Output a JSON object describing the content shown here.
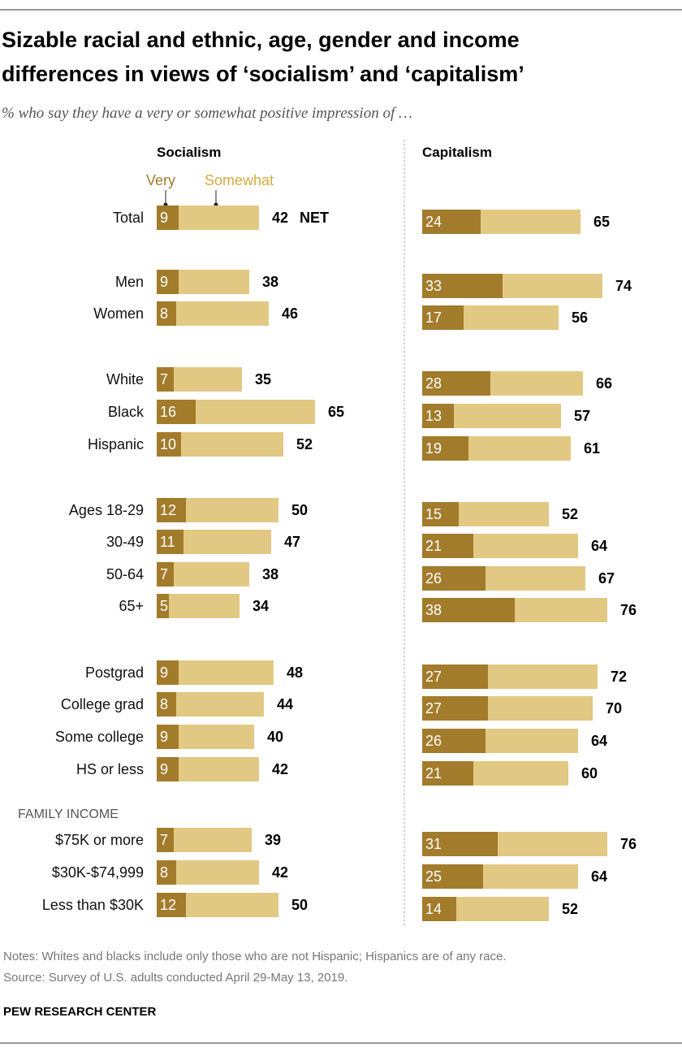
{
  "chart_data": {
    "type": "bar",
    "subtype": "stacked-horizontal",
    "title": "Sizable racial and ethnic, age, gender and income differences in views of ‘socialism’ and ‘capitalism’",
    "title_lines": [
      "Sizable racial and ethnic, age, gender and income",
      "differences in views of ‘socialism’ and ‘capitalism’"
    ],
    "subtitle": "% who say they have a very or somewhat positive impression of …",
    "legend": {
      "very": "Very",
      "somewhat": "Somewhat"
    },
    "net_label": "NET",
    "section_label": "FAMILY INCOME",
    "categories": [
      "Total",
      "Men",
      "Women",
      "White",
      "Black",
      "Hispanic",
      "Ages 18-29",
      "30-49",
      "50-64",
      "65+",
      "Postgrad",
      "College grad",
      "Some college",
      "HS or less",
      "$75K or more",
      "$30K-$74,999",
      "Less than $30K"
    ],
    "panels": [
      {
        "name": "Socialism",
        "very": [
          9,
          9,
          8,
          7,
          16,
          10,
          12,
          11,
          7,
          5,
          9,
          8,
          9,
          9,
          7,
          8,
          12
        ],
        "net": [
          42,
          38,
          46,
          35,
          65,
          52,
          50,
          47,
          38,
          34,
          48,
          44,
          40,
          42,
          39,
          42,
          50
        ]
      },
      {
        "name": "Capitalism",
        "very": [
          24,
          33,
          17,
          28,
          13,
          19,
          15,
          21,
          26,
          38,
          27,
          27,
          26,
          21,
          31,
          25,
          14
        ],
        "net": [
          65,
          74,
          56,
          66,
          57,
          61,
          52,
          64,
          67,
          76,
          72,
          70,
          64,
          60,
          76,
          64,
          52
        ]
      }
    ],
    "colors": {
      "very": "#a27b2b",
      "somewhat": "#e2c983"
    },
    "notes": "Notes: Whites and blacks include only those who are not Hispanic; Hispanics are of any race.",
    "source": "Source: Survey of U.S. adults conducted April 29-May 13, 2019.",
    "brand": "PEW RESEARCH CENTER"
  }
}
